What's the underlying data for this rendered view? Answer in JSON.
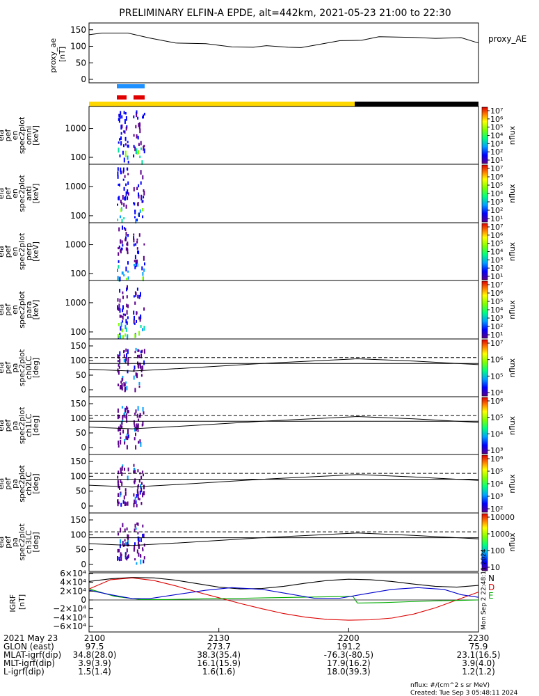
{
  "title": "PRELIMINARY ELFIN-A EPDE, alt=442km, 2021-05-23 21:00 to 22:30",
  "chart_data": [
    {
      "type": "line",
      "id": "proxy_ae",
      "ylabel": [
        "proxy_ae",
        "[nT]"
      ],
      "legend": "proxy_AE",
      "yticks": [
        "150",
        "100",
        "50",
        "0"
      ],
      "ylim": [
        0,
        160
      ],
      "x_minutes": [
        0,
        3,
        9,
        14,
        20,
        27,
        33,
        38,
        41,
        46,
        49,
        52,
        58,
        63,
        67,
        75,
        80,
        86,
        90
      ],
      "values": [
        135,
        140,
        140,
        125,
        110,
        108,
        98,
        97,
        102,
        97,
        96,
        103,
        117,
        118,
        129,
        127,
        124,
        126,
        110
      ],
      "color": "#000000"
    },
    {
      "type": "heatmap",
      "id": "energy_omni",
      "ylabel": [
        "ela",
        "pef",
        "en",
        "spec2plot",
        "omni",
        "[keV]"
      ],
      "yticks": [
        "1000",
        "100"
      ],
      "colorbar": {
        "ticks": [
          "10⁷",
          "10⁶",
          "10⁵",
          "10⁴",
          "10³",
          "10²",
          "10¹"
        ],
        "label": "nflux"
      }
    },
    {
      "type": "heatmap",
      "id": "energy_anti",
      "ylabel": [
        "ela",
        "pef",
        "en",
        "spec2plot",
        "anti",
        "[keV]"
      ],
      "yticks": [
        "1000",
        "100"
      ],
      "colorbar": {
        "ticks": [
          "10⁷",
          "10⁶",
          "10⁵",
          "10⁴",
          "10³",
          "10²",
          "10¹"
        ],
        "label": "nflux"
      }
    },
    {
      "type": "heatmap",
      "id": "energy_perp",
      "ylabel": [
        "ela",
        "pef",
        "en",
        "spec2plot",
        "perp",
        "[keV]"
      ],
      "yticks": [
        "1000",
        "100"
      ],
      "colorbar": {
        "ticks": [
          "10⁷",
          "10⁶",
          "10⁵",
          "10⁴",
          "10³",
          "10²",
          "10¹"
        ],
        "label": "nflux"
      }
    },
    {
      "type": "heatmap",
      "id": "energy_para",
      "ylabel": [
        "ela",
        "pef",
        "en",
        "spec2plot",
        "para",
        "[keV]"
      ],
      "yticks": [
        "1000",
        "100"
      ],
      "colorbar": {
        "ticks": [
          "10⁷",
          "10⁶",
          "10⁵",
          "10⁴",
          "10³",
          "10²",
          "10¹"
        ],
        "label": "nflux"
      }
    },
    {
      "type": "heatmap",
      "id": "pa_ch0LC",
      "ylabel": [
        "ela",
        "pef",
        "pa",
        "spec2plot",
        "ch0LC",
        "[deg]"
      ],
      "yticks": [
        "150",
        "100",
        "50",
        "0"
      ],
      "colorbar": {
        "ticks": [
          "10⁷",
          "10⁶",
          "10⁵",
          "10⁴"
        ],
        "label": "nflux"
      }
    },
    {
      "type": "heatmap",
      "id": "pa_ch1LC",
      "ylabel": [
        "ela",
        "pef",
        "pa",
        "spec2plot",
        "ch1LC",
        "[deg]"
      ],
      "yticks": [
        "150",
        "100",
        "50",
        "0"
      ],
      "colorbar": {
        "ticks": [
          "10⁶",
          "10⁵",
          "10⁴",
          "10³"
        ],
        "label": "nflux"
      }
    },
    {
      "type": "heatmap",
      "id": "pa_ch2LC",
      "ylabel": [
        "ela",
        "pef",
        "pa",
        "spec2plot",
        "ch2LC",
        "[deg]"
      ],
      "yticks": [
        "150",
        "100",
        "50",
        "0"
      ],
      "colorbar": {
        "ticks": [
          "10⁶",
          "10⁵",
          "10⁴",
          "10³",
          "10²"
        ],
        "label": "nflux"
      }
    },
    {
      "type": "heatmap",
      "id": "pa_ch3LC",
      "ylabel": [
        "ela",
        "pef",
        "pa",
        "spec2plot",
        "ch3LC",
        "[deg]"
      ],
      "yticks": [
        "150",
        "100",
        "50",
        "0"
      ],
      "colorbar": {
        "ticks": [
          "10000",
          "1000",
          "100",
          "10"
        ],
        "label": "nflux"
      }
    },
    {
      "type": "line",
      "id": "igrf",
      "ylabel": [
        "IGRF",
        "[nT]"
      ],
      "yticks": [
        "6×10⁴",
        "4×10⁴",
        "2×10⁴",
        "0",
        "−2×10⁴",
        "−4×10⁴",
        "−6×10⁴"
      ],
      "ylim": [
        -60000,
        60000
      ],
      "legend": [
        "N",
        "D",
        "E"
      ],
      "series": [
        {
          "name": "N",
          "color": "#000000",
          "x_minutes": [
            0,
            5,
            10,
            15,
            20,
            25,
            30,
            35,
            40,
            45,
            50,
            55,
            60,
            65,
            70,
            75,
            80,
            85,
            90
          ],
          "values": [
            42000,
            48000,
            51000,
            50000,
            45000,
            37000,
            29000,
            25000,
            26000,
            31000,
            38000,
            44000,
            47000,
            46000,
            42000,
            36000,
            31000,
            29000,
            33000
          ]
        },
        {
          "name": "D",
          "color": "#dd0000",
          "x_minutes": [
            0,
            5,
            10,
            15,
            20,
            25,
            30,
            35,
            40,
            45,
            50,
            55,
            60,
            65,
            70,
            75,
            80,
            85,
            90
          ],
          "values": [
            25000,
            46000,
            50000,
            44000,
            32000,
            18000,
            5000,
            -8000,
            -20000,
            -31000,
            -39000,
            -44000,
            -46000,
            -45000,
            -41000,
            -32000,
            -18000,
            0,
            18000
          ]
        },
        {
          "name": "E",
          "color": "#00aa00",
          "x_minutes": [
            0,
            6,
            12,
            18,
            24,
            30,
            36,
            42,
            48,
            54,
            60,
            61,
            62,
            68,
            74,
            80,
            86,
            90
          ],
          "values": [
            25000,
            8000,
            1000,
            1000,
            2000,
            3000,
            4000,
            5000,
            6000,
            7000,
            8000,
            8000,
            -7000,
            -6000,
            -4000,
            -2000,
            -1000,
            0
          ]
        },
        {
          "name": "",
          "color": "#0000cc",
          "x_minutes": [
            0,
            5,
            10,
            14,
            20,
            27,
            33,
            40,
            46,
            52,
            58,
            64,
            70,
            76,
            82,
            86,
            90
          ],
          "values": [
            22000,
            12000,
            3000,
            3000,
            12000,
            22000,
            28000,
            24000,
            14000,
            4000,
            4000,
            14000,
            24000,
            28000,
            24000,
            12000,
            6000
          ]
        }
      ]
    }
  ],
  "time_axis": {
    "date": "2021 May 23",
    "rows": [
      {
        "label": "2021 May 23",
        "values": [
          "2100",
          "2130",
          "2200",
          "2230"
        ]
      },
      {
        "label": "GLON (east)",
        "values": [
          "97.5",
          "273.7",
          "191.2",
          "75.9"
        ]
      },
      {
        "label": "MLAT-igrf(dip)",
        "values": [
          "34.8(28.0)",
          "38.3(35.4)",
          "-76.3(-80.5)",
          "23.1(16.5)"
        ]
      },
      {
        "label": "MLT-igrf(dip)",
        "values": [
          "3.9(3.9)",
          "16.1(15.9)",
          "17.9(16.2)",
          "3.9(4.0)"
        ]
      },
      {
        "label": "L-igrf(dip)",
        "values": [
          "1.5(1.4)",
          "1.6(1.6)",
          "18.0(39.3)",
          "1.2(1.2)"
        ]
      }
    ]
  },
  "footer": {
    "units": "nflux: #/(cm^2 s sr MeV)",
    "created": "Created: Tue Sep  3 05:48:11 2024",
    "side_stamp": "Mon Sep  2 22:48:11 2024"
  },
  "colors": {
    "sunlight_bar": "#ffd700",
    "eclipse_bar": "#000000",
    "science_zone_bar": "#1e90ff",
    "ibo_bar": "#e00000"
  }
}
